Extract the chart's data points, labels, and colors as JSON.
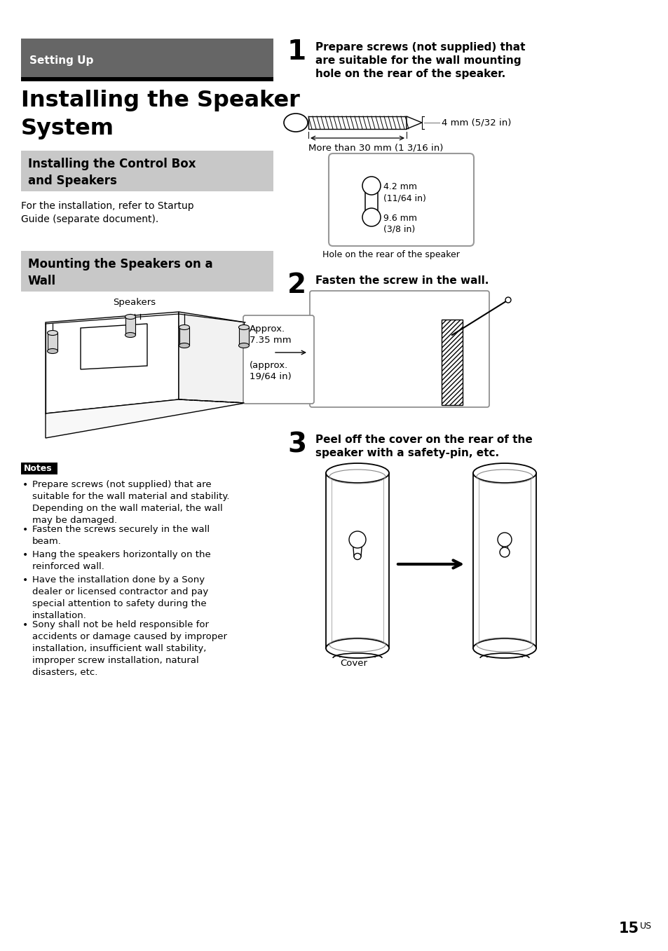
{
  "page_bg": "#ffffff",
  "header_bg": "#666666",
  "header_text": "Setting Up",
  "header_text_color": "#ffffff",
  "title_line1": "Installing the Speaker",
  "title_line2": "System",
  "section1_bg": "#c8c8c8",
  "section1_text": "Installing the Control Box\nand Speakers",
  "section2_bg": "#c8c8c8",
  "section2_text": "Mounting the Speakers on a\nWall",
  "para1": "For the installation, refer to Startup\nGuide (separate document).",
  "notes_bg": "#000000",
  "notes_text": "Notes",
  "notes_bullets": [
    "Prepare screws (not supplied) that are\nsuitable for the wall material and stability.\nDepending on the wall material, the wall\nmay be damaged.",
    "Fasten the screws securely in the wall\nbeam.",
    "Hang the speakers horizontally on the\nreinforced wall.",
    "Have the installation done by a Sony\ndealer or licensed contractor and pay\nspecial attention to safety during the\ninstallation.",
    "Sony shall not be held responsible for\naccidents or damage caused by improper\ninstallation, insufficient wall stability,\nimproper screw installation, natural\ndisasters, etc."
  ],
  "step1_num": "1",
  "step1_text": "Prepare screws (not supplied) that\nare suitable for the wall mounting\nhole on the rear of the speaker.",
  "step2_num": "2",
  "step2_text": "Fasten the screw in the wall.",
  "step3_num": "3",
  "step3_text": "Peel off the cover on the rear of the\nspeaker with a safety-pin, etc.",
  "screw_label1": "4 mm (5/32 in)",
  "screw_label2": "More than 30 mm (1 3/16 in)",
  "hole_label1": "4.2 mm\n(11/64 in)",
  "hole_label2": "9.6 mm\n(3/8 in)",
  "hole_caption": "Hole on the rear of the speaker",
  "wall_label1": "Approx.\n7.35 mm",
  "wall_label2": "(approx.\n19/64 in)",
  "cover_label": "Cover",
  "page_num": "15",
  "page_suffix": "US"
}
